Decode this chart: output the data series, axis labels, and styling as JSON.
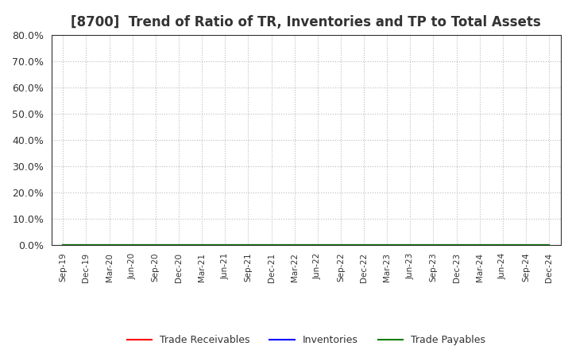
{
  "title": "[8700]  Trend of Ratio of TR, Inventories and TP to Total Assets",
  "title_fontsize": 12,
  "title_color": "#333333",
  "background_color": "#ffffff",
  "plot_background_color": "#ffffff",
  "x_labels": [
    "Sep-19",
    "Dec-19",
    "Mar-20",
    "Jun-20",
    "Sep-20",
    "Dec-20",
    "Mar-21",
    "Jun-21",
    "Sep-21",
    "Dec-21",
    "Mar-22",
    "Jun-22",
    "Sep-22",
    "Dec-22",
    "Mar-23",
    "Jun-23",
    "Sep-23",
    "Dec-23",
    "Mar-24",
    "Jun-24",
    "Sep-24",
    "Dec-24"
  ],
  "series": [
    {
      "label": "Trade Receivables",
      "color": "#ff0000",
      "values": [
        0,
        0,
        0,
        0,
        0,
        0,
        0,
        0,
        0,
        0,
        0,
        0,
        0,
        0,
        0,
        0,
        0,
        0,
        0,
        0,
        0,
        0
      ]
    },
    {
      "label": "Inventories",
      "color": "#0000ff",
      "values": [
        0,
        0,
        0,
        0,
        0,
        0,
        0,
        0,
        0,
        0,
        0,
        0,
        0,
        0,
        0,
        0,
        0,
        0,
        0,
        0,
        0,
        0
      ]
    },
    {
      "label": "Trade Payables",
      "color": "#008000",
      "values": [
        0,
        0,
        0,
        0,
        0,
        0,
        0,
        0,
        0,
        0,
        0,
        0,
        0,
        0,
        0,
        0,
        0,
        0,
        0,
        0,
        0,
        0
      ]
    }
  ],
  "ylim": [
    0,
    0.8
  ],
  "yticks": [
    0.0,
    0.1,
    0.2,
    0.3,
    0.4,
    0.5,
    0.6,
    0.7,
    0.8
  ],
  "ylabel": "",
  "xlabel": "",
  "grid_color": "#bbbbbb",
  "grid_linestyle": ":",
  "grid_linewidth": 0.8,
  "legend_loc": "lower center",
  "legend_ncol": 3,
  "line_width": 1.5,
  "tick_label_color": "#333333",
  "spine_color": "#333333"
}
